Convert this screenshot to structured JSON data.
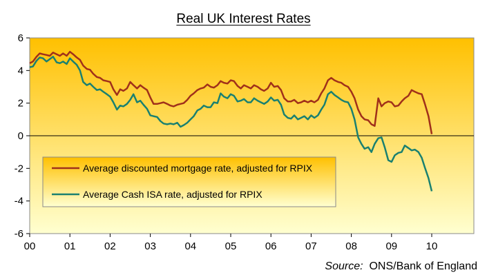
{
  "chart_data": {
    "type": "line",
    "title": "Real UK Interest Rates",
    "source_label": "Source:",
    "source_text": "ONS/Bank of England",
    "xlabel": "",
    "ylabel": "",
    "ylim": [
      -6,
      6
    ],
    "yticks": [
      -6,
      -4,
      -2,
      0,
      2,
      4,
      6
    ],
    "xlim": [
      0,
      11
    ],
    "xticks": [
      "00",
      "01",
      "02",
      "03",
      "04",
      "05",
      "06",
      "07",
      "08",
      "09",
      "10"
    ],
    "x_unit": "years since 2000",
    "legend_position": "lower-left inside plot",
    "grid": false,
    "background": {
      "top": "#ffc000",
      "bottom": "#ffffd0"
    },
    "series": [
      {
        "name": "Average discounted mortgage rate, adjusted for RPIX",
        "color": "#a0301a",
        "points": [
          [
            0.0,
            4.45
          ],
          [
            0.08,
            4.55
          ],
          [
            0.17,
            4.85
          ],
          [
            0.25,
            5.05
          ],
          [
            0.33,
            5.0
          ],
          [
            0.42,
            4.95
          ],
          [
            0.5,
            4.9
          ],
          [
            0.58,
            5.1
          ],
          [
            0.67,
            5.0
          ],
          [
            0.75,
            4.9
          ],
          [
            0.83,
            5.05
          ],
          [
            0.92,
            4.9
          ],
          [
            1.0,
            5.15
          ],
          [
            1.08,
            5.0
          ],
          [
            1.17,
            4.8
          ],
          [
            1.25,
            4.65
          ],
          [
            1.33,
            4.3
          ],
          [
            1.42,
            4.1
          ],
          [
            1.5,
            4.05
          ],
          [
            1.58,
            3.8
          ],
          [
            1.67,
            3.6
          ],
          [
            1.75,
            3.55
          ],
          [
            1.83,
            3.4
          ],
          [
            1.92,
            3.35
          ],
          [
            2.0,
            3.3
          ],
          [
            2.08,
            2.85
          ],
          [
            2.17,
            2.5
          ],
          [
            2.25,
            2.85
          ],
          [
            2.33,
            2.75
          ],
          [
            2.42,
            2.9
          ],
          [
            2.5,
            3.3
          ],
          [
            2.58,
            3.1
          ],
          [
            2.67,
            2.9
          ],
          [
            2.75,
            3.1
          ],
          [
            2.83,
            2.95
          ],
          [
            2.92,
            2.8
          ],
          [
            3.0,
            2.35
          ],
          [
            3.08,
            1.95
          ],
          [
            3.17,
            1.95
          ],
          [
            3.25,
            2.0
          ],
          [
            3.33,
            2.05
          ],
          [
            3.42,
            1.95
          ],
          [
            3.5,
            1.85
          ],
          [
            3.58,
            1.8
          ],
          [
            3.67,
            1.9
          ],
          [
            3.75,
            1.95
          ],
          [
            3.83,
            2.0
          ],
          [
            3.92,
            2.2
          ],
          [
            4.0,
            2.45
          ],
          [
            4.08,
            2.6
          ],
          [
            4.17,
            2.8
          ],
          [
            4.25,
            2.9
          ],
          [
            4.33,
            2.95
          ],
          [
            4.42,
            3.15
          ],
          [
            4.5,
            3.0
          ],
          [
            4.58,
            2.95
          ],
          [
            4.67,
            3.1
          ],
          [
            4.75,
            3.35
          ],
          [
            4.83,
            3.25
          ],
          [
            4.92,
            3.2
          ],
          [
            5.0,
            3.4
          ],
          [
            5.08,
            3.35
          ],
          [
            5.17,
            3.05
          ],
          [
            5.25,
            2.9
          ],
          [
            5.33,
            3.1
          ],
          [
            5.42,
            3.0
          ],
          [
            5.5,
            2.9
          ],
          [
            5.58,
            3.1
          ],
          [
            5.67,
            3.0
          ],
          [
            5.75,
            2.85
          ],
          [
            5.83,
            2.75
          ],
          [
            5.92,
            2.9
          ],
          [
            6.0,
            3.25
          ],
          [
            6.08,
            3.0
          ],
          [
            6.17,
            3.05
          ],
          [
            6.25,
            2.8
          ],
          [
            6.33,
            2.3
          ],
          [
            6.42,
            2.1
          ],
          [
            6.5,
            2.1
          ],
          [
            6.58,
            2.2
          ],
          [
            6.67,
            2.0
          ],
          [
            6.75,
            2.05
          ],
          [
            6.83,
            2.15
          ],
          [
            6.92,
            2.05
          ],
          [
            7.0,
            2.15
          ],
          [
            7.08,
            2.05
          ],
          [
            7.17,
            2.2
          ],
          [
            7.25,
            2.6
          ],
          [
            7.33,
            2.9
          ],
          [
            7.42,
            3.4
          ],
          [
            7.5,
            3.55
          ],
          [
            7.58,
            3.4
          ],
          [
            7.67,
            3.3
          ],
          [
            7.75,
            3.25
          ],
          [
            7.83,
            3.1
          ],
          [
            7.92,
            3.0
          ],
          [
            8.0,
            2.7
          ],
          [
            8.08,
            2.3
          ],
          [
            8.17,
            1.6
          ],
          [
            8.25,
            1.2
          ],
          [
            8.33,
            1.0
          ],
          [
            8.42,
            0.95
          ],
          [
            8.5,
            0.7
          ],
          [
            8.58,
            0.6
          ],
          [
            8.67,
            2.3
          ],
          [
            8.75,
            1.8
          ],
          [
            8.83,
            2.0
          ],
          [
            8.92,
            2.1
          ],
          [
            9.0,
            2.05
          ],
          [
            9.08,
            1.8
          ],
          [
            9.17,
            1.85
          ],
          [
            9.25,
            2.1
          ],
          [
            9.33,
            2.3
          ],
          [
            9.42,
            2.45
          ],
          [
            9.5,
            2.8
          ],
          [
            9.58,
            2.7
          ],
          [
            9.67,
            2.6
          ],
          [
            9.75,
            2.55
          ],
          [
            9.83,
            1.95
          ],
          [
            9.92,
            1.2
          ],
          [
            10.0,
            0.1
          ]
        ]
      },
      {
        "name": "Average Cash ISA rate, adjusted for RPIX",
        "color": "#1a8070",
        "points": [
          [
            0.0,
            4.2
          ],
          [
            0.08,
            4.25
          ],
          [
            0.17,
            4.6
          ],
          [
            0.25,
            4.8
          ],
          [
            0.33,
            4.75
          ],
          [
            0.42,
            4.55
          ],
          [
            0.5,
            4.7
          ],
          [
            0.58,
            4.85
          ],
          [
            0.67,
            4.5
          ],
          [
            0.75,
            4.45
          ],
          [
            0.83,
            4.55
          ],
          [
            0.92,
            4.4
          ],
          [
            1.0,
            4.75
          ],
          [
            1.08,
            4.55
          ],
          [
            1.17,
            4.35
          ],
          [
            1.25,
            4.0
          ],
          [
            1.33,
            3.3
          ],
          [
            1.42,
            3.1
          ],
          [
            1.5,
            3.2
          ],
          [
            1.58,
            3.0
          ],
          [
            1.67,
            2.8
          ],
          [
            1.75,
            2.85
          ],
          [
            1.83,
            2.7
          ],
          [
            1.92,
            2.55
          ],
          [
            2.0,
            2.4
          ],
          [
            2.08,
            2.05
          ],
          [
            2.17,
            1.6
          ],
          [
            2.25,
            1.85
          ],
          [
            2.33,
            1.8
          ],
          [
            2.42,
            1.95
          ],
          [
            2.5,
            2.2
          ],
          [
            2.58,
            2.55
          ],
          [
            2.67,
            2.05
          ],
          [
            2.75,
            2.15
          ],
          [
            2.83,
            1.9
          ],
          [
            2.92,
            1.65
          ],
          [
            3.0,
            1.25
          ],
          [
            3.08,
            1.2
          ],
          [
            3.17,
            1.15
          ],
          [
            3.25,
            0.9
          ],
          [
            3.33,
            0.75
          ],
          [
            3.42,
            0.7
          ],
          [
            3.5,
            0.75
          ],
          [
            3.58,
            0.7
          ],
          [
            3.67,
            0.8
          ],
          [
            3.75,
            0.55
          ],
          [
            3.83,
            0.65
          ],
          [
            3.92,
            0.8
          ],
          [
            4.0,
            1.0
          ],
          [
            4.08,
            1.2
          ],
          [
            4.17,
            1.55
          ],
          [
            4.25,
            1.65
          ],
          [
            4.33,
            1.85
          ],
          [
            4.42,
            1.75
          ],
          [
            4.5,
            1.75
          ],
          [
            4.58,
            2.05
          ],
          [
            4.67,
            2.0
          ],
          [
            4.75,
            2.6
          ],
          [
            4.83,
            2.4
          ],
          [
            4.92,
            2.3
          ],
          [
            5.0,
            2.55
          ],
          [
            5.08,
            2.45
          ],
          [
            5.17,
            2.1
          ],
          [
            5.25,
            2.15
          ],
          [
            5.33,
            2.25
          ],
          [
            5.42,
            2.05
          ],
          [
            5.5,
            2.05
          ],
          [
            5.58,
            2.3
          ],
          [
            5.67,
            2.15
          ],
          [
            5.75,
            2.05
          ],
          [
            5.83,
            1.95
          ],
          [
            5.92,
            2.1
          ],
          [
            6.0,
            2.35
          ],
          [
            6.08,
            2.15
          ],
          [
            6.17,
            2.2
          ],
          [
            6.25,
            1.9
          ],
          [
            6.33,
            1.3
          ],
          [
            6.42,
            1.1
          ],
          [
            6.5,
            1.05
          ],
          [
            6.58,
            1.25
          ],
          [
            6.67,
            1.0
          ],
          [
            6.75,
            1.1
          ],
          [
            6.83,
            1.2
          ],
          [
            6.92,
            1.0
          ],
          [
            7.0,
            1.25
          ],
          [
            7.08,
            1.1
          ],
          [
            7.17,
            1.25
          ],
          [
            7.25,
            1.6
          ],
          [
            7.33,
            1.9
          ],
          [
            7.42,
            2.55
          ],
          [
            7.5,
            2.7
          ],
          [
            7.58,
            2.5
          ],
          [
            7.67,
            2.35
          ],
          [
            7.75,
            2.2
          ],
          [
            7.83,
            2.1
          ],
          [
            7.92,
            2.05
          ],
          [
            8.0,
            1.65
          ],
          [
            8.08,
            1.0
          ],
          [
            8.17,
            -0.1
          ],
          [
            8.25,
            -0.5
          ],
          [
            8.33,
            -0.8
          ],
          [
            8.42,
            -0.7
          ],
          [
            8.5,
            -1.0
          ],
          [
            8.58,
            -0.5
          ],
          [
            8.67,
            -0.15
          ],
          [
            8.75,
            -0.1
          ],
          [
            8.83,
            -0.7
          ],
          [
            8.92,
            -1.5
          ],
          [
            9.0,
            -1.6
          ],
          [
            9.08,
            -1.2
          ],
          [
            9.17,
            -1.05
          ],
          [
            9.25,
            -1.0
          ],
          [
            9.33,
            -0.6
          ],
          [
            9.42,
            -0.75
          ],
          [
            9.5,
            -0.9
          ],
          [
            9.58,
            -0.85
          ],
          [
            9.67,
            -1.0
          ],
          [
            9.75,
            -1.35
          ],
          [
            9.83,
            -1.95
          ],
          [
            9.92,
            -2.6
          ],
          [
            10.0,
            -3.4
          ]
        ]
      }
    ]
  }
}
